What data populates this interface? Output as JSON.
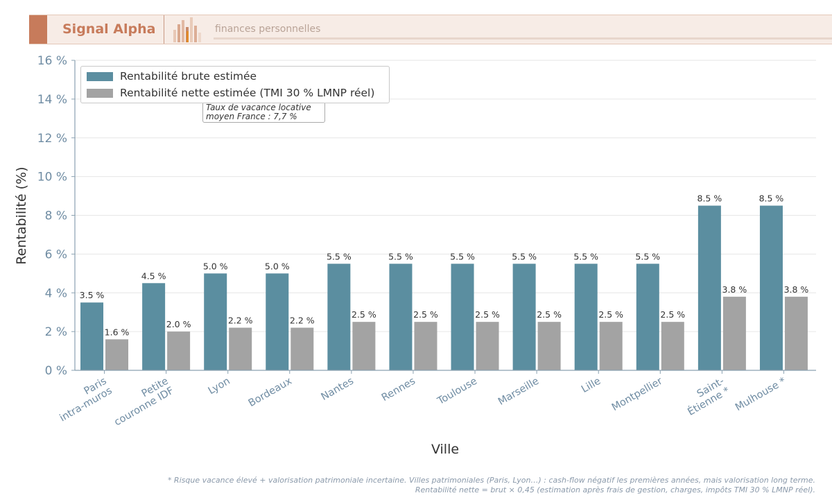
{
  "header": {
    "brand": "Signal Alpha",
    "tagline": "finances personnelles"
  },
  "colors": {
    "brut": "#5b8ea0",
    "net": "#a3a3a3",
    "accent": "#c77b5b",
    "axis_text": "#6f8ca3"
  },
  "chart_data": {
    "type": "bar",
    "xlabel": "Ville",
    "ylabel": "Rentabilité (%)",
    "ylim": [
      0,
      16
    ],
    "yticks": [
      0,
      2,
      4,
      6,
      8,
      10,
      12,
      14,
      16
    ],
    "ytick_labels": [
      "0 %",
      "2 %",
      "4 %",
      "6 %",
      "8 %",
      "10 %",
      "12 %",
      "14 %",
      "16 %"
    ],
    "grid": true,
    "legend_position": "top-left",
    "categories": [
      [
        "Paris",
        "intra-muros"
      ],
      [
        "Petite",
        "couronne IDF"
      ],
      [
        "Lyon"
      ],
      [
        "Bordeaux"
      ],
      [
        "Nantes"
      ],
      [
        "Rennes"
      ],
      [
        "Toulouse"
      ],
      [
        "Marseille"
      ],
      [
        "Lille"
      ],
      [
        "Montpellier"
      ],
      [
        "Saint-",
        "Étienne *"
      ],
      [
        "Mulhouse *"
      ]
    ],
    "series": [
      {
        "name": "Rentabilité brute estimée",
        "values": [
          3.5,
          4.5,
          5.0,
          5.0,
          5.5,
          5.5,
          5.5,
          5.5,
          5.5,
          5.5,
          8.5,
          8.5
        ],
        "labels": [
          "3.5 %",
          "4.5 %",
          "5.0 %",
          "5.0 %",
          "5.5 %",
          "5.5 %",
          "5.5 %",
          "5.5 %",
          "5.5 %",
          "5.5 %",
          "8.5 %",
          "8.5 %"
        ]
      },
      {
        "name": "Rentabilité nette estimée (TMI 30 % LMNP réel)",
        "values": [
          1.6,
          2.0,
          2.2,
          2.2,
          2.5,
          2.5,
          2.5,
          2.5,
          2.5,
          2.5,
          3.8,
          3.8
        ],
        "labels": [
          "1.6 %",
          "2.0 %",
          "2.2 %",
          "2.2 %",
          "2.5 %",
          "2.5 %",
          "2.5 %",
          "2.5 %",
          "2.5 %",
          "2.5 %",
          "3.8 %",
          "3.8 %"
        ]
      }
    ],
    "annotation": {
      "line1": "Taux de vacance locative",
      "line2": "moyen France : 7,7 %"
    }
  },
  "footnote": {
    "line1": "* Risque vacance élevé + valorisation patrimoniale incertaine.  Villes patrimoniales (Paris, Lyon…) : cash-flow négatif les premières années, mais valorisation long terme.",
    "line2": "Rentabilité nette = brut × 0,45 (estimation après frais de gestion, charges, impôts TMI 30 % LMNP réel)."
  }
}
